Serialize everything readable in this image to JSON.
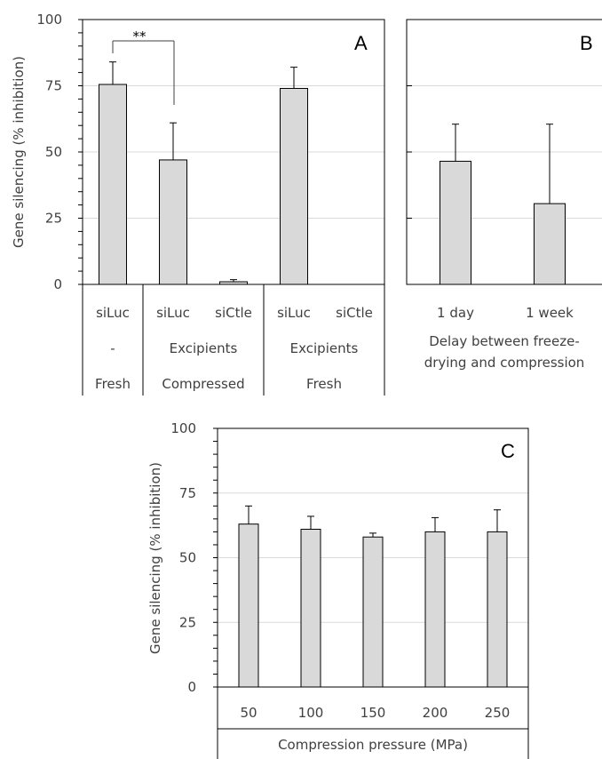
{
  "colors": {
    "bar_fill": "#d9d9d9",
    "bar_stroke": "#000000",
    "gridline": "#d9d9d9",
    "axis": "#000000",
    "text": "#404040"
  },
  "chart_data": [
    {
      "type": "bar",
      "panel": "A",
      "ylabel": "Gene silencing (% inhibition)",
      "ylim": [
        0,
        100
      ],
      "yticks": [
        "0",
        "25",
        "50",
        "75",
        "100"
      ],
      "grid": true,
      "categories": [
        {
          "label": "siLuc",
          "excipient": "-",
          "state": "Fresh"
        },
        {
          "label": "siLuc",
          "excipient": "Excipients",
          "state": "Compressed"
        },
        {
          "label": "siCtle",
          "excipient": "Excipients",
          "state": "Compressed"
        },
        {
          "label": "siLuc",
          "excipient": "Excipients",
          "state": "Fresh"
        },
        {
          "label": "siCtle",
          "excipient": "Excipients",
          "state": "Fresh"
        }
      ],
      "groups_row2": [
        "-",
        "Excipients",
        "Excipients"
      ],
      "groups_row3": [
        "Fresh",
        "Compressed",
        "Fresh"
      ],
      "values": [
        75.5,
        47,
        1,
        74,
        0
      ],
      "errors": [
        8.5,
        14,
        0.8,
        8,
        0
      ],
      "annotation": "**"
    },
    {
      "type": "bar",
      "panel": "B",
      "xlabel_line1": "Delay between freeze-",
      "xlabel_line2": "drying and compression",
      "ylim": [
        0,
        100
      ],
      "grid": true,
      "categories": [
        "1 day",
        "1 week"
      ],
      "values": [
        46.5,
        30.5
      ],
      "errors": [
        14,
        30
      ]
    },
    {
      "type": "bar",
      "panel": "C",
      "ylabel": "Gene silencing (% inhibition)",
      "xlabel": "Compression pressure (MPa)",
      "ylim": [
        0,
        100
      ],
      "yticks": [
        "0",
        "25",
        "50",
        "75",
        "100"
      ],
      "grid": true,
      "categories": [
        "50",
        "100",
        "150",
        "200",
        "250"
      ],
      "values": [
        63,
        61,
        58,
        60,
        60
      ],
      "errors": [
        7,
        5,
        1.5,
        5.5,
        8.5
      ]
    }
  ]
}
